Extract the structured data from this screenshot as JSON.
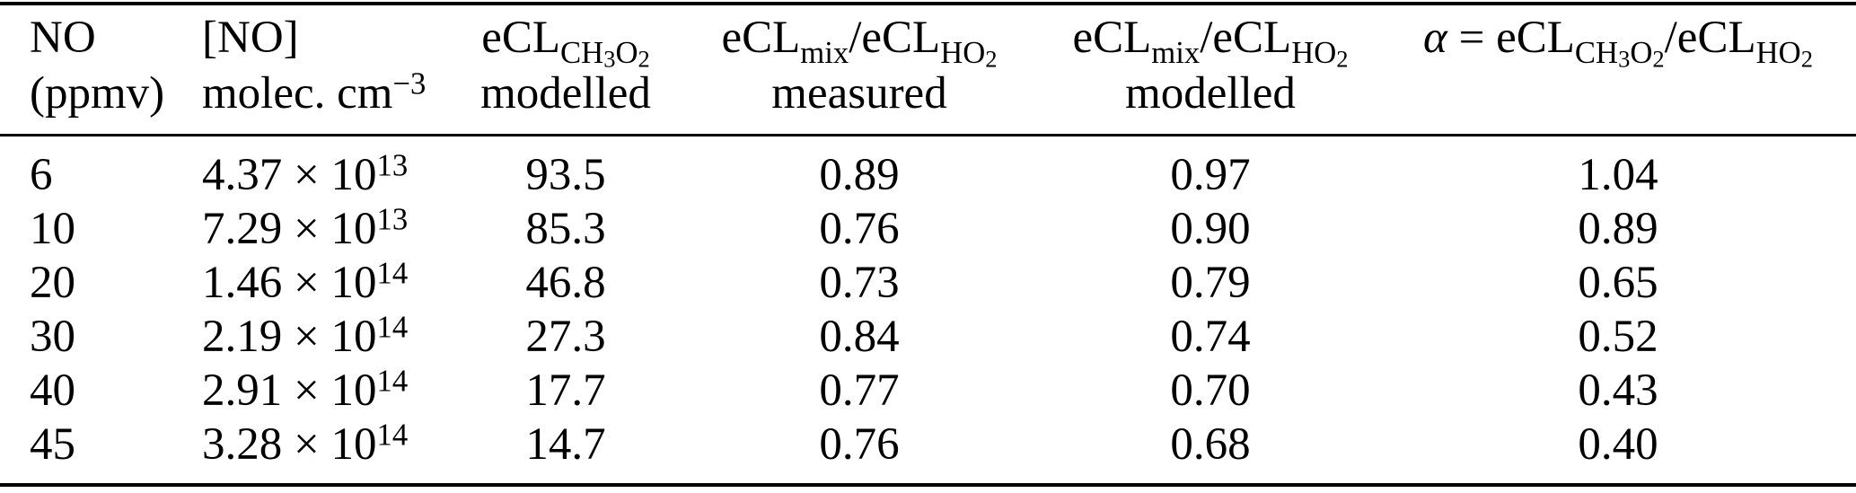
{
  "page": {
    "background": "#ffffff",
    "text_color": "#000000",
    "rule_color": "#000000"
  },
  "table": {
    "header": {
      "c1": {
        "l1": [
          [
            "n",
            "NO"
          ]
        ],
        "l2": [
          [
            "n",
            "(ppmv)"
          ]
        ]
      },
      "c2": {
        "l1": [
          [
            "n",
            "[NO]"
          ]
        ],
        "l2": [
          [
            "n",
            "molec. cm"
          ],
          [
            "p",
            "−3"
          ]
        ]
      },
      "c3": {
        "l1": [
          [
            "n",
            "eCL"
          ],
          [
            "s",
            "CH"
          ],
          [
            "ss",
            "3"
          ],
          [
            "s",
            "O"
          ],
          [
            "ss",
            "2"
          ]
        ],
        "l2": [
          [
            "n",
            "modelled"
          ]
        ]
      },
      "c4": {
        "l1": [
          [
            "n",
            "eCL"
          ],
          [
            "s",
            "mix"
          ],
          [
            "n",
            "/eCL"
          ],
          [
            "s",
            "HO"
          ],
          [
            "ss",
            "2"
          ]
        ],
        "l2": [
          [
            "n",
            "measured"
          ]
        ]
      },
      "c5": {
        "l1": [
          [
            "n",
            "eCL"
          ],
          [
            "s",
            "mix"
          ],
          [
            "n",
            "/eCL"
          ],
          [
            "s",
            "HO"
          ],
          [
            "ss",
            "2"
          ]
        ],
        "l2": [
          [
            "n",
            "modelled"
          ]
        ]
      },
      "c6": {
        "l1": [
          [
            "i",
            "α"
          ],
          [
            "n",
            " = eCL"
          ],
          [
            "s",
            "CH"
          ],
          [
            "ss",
            "3"
          ],
          [
            "s",
            "O"
          ],
          [
            "ss",
            "2"
          ],
          [
            "n",
            "/eCL"
          ],
          [
            "s",
            "HO"
          ],
          [
            "ss",
            "2"
          ]
        ],
        "l2": []
      }
    },
    "rows": [
      {
        "no": "6",
        "conc": [
          [
            "n",
            "4.37 × 10"
          ],
          [
            "p",
            "13"
          ]
        ],
        "ecl": "93.5",
        "meas": "0.89",
        "mod": "0.97",
        "alpha": "1.04"
      },
      {
        "no": "10",
        "conc": [
          [
            "n",
            "7.29 × 10"
          ],
          [
            "p",
            "13"
          ]
        ],
        "ecl": "85.3",
        "meas": "0.76",
        "mod": "0.90",
        "alpha": "0.89"
      },
      {
        "no": "20",
        "conc": [
          [
            "n",
            "1.46 × 10"
          ],
          [
            "p",
            "14"
          ]
        ],
        "ecl": "46.8",
        "meas": "0.73",
        "mod": "0.79",
        "alpha": "0.65"
      },
      {
        "no": "30",
        "conc": [
          [
            "n",
            "2.19 × 10"
          ],
          [
            "p",
            "14"
          ]
        ],
        "ecl": "27.3",
        "meas": "0.84",
        "mod": "0.74",
        "alpha": "0.52"
      },
      {
        "no": "40",
        "conc": [
          [
            "n",
            "2.91 × 10"
          ],
          [
            "p",
            "14"
          ]
        ],
        "ecl": "17.7",
        "meas": "0.77",
        "mod": "0.70",
        "alpha": "0.43"
      },
      {
        "no": "45",
        "conc": [
          [
            "n",
            "3.28 × 10"
          ],
          [
            "p",
            "14"
          ]
        ],
        "ecl": "14.7",
        "meas": "0.76",
        "mod": "0.68",
        "alpha": "0.40"
      }
    ]
  },
  "chart_data": {
    "type": "table",
    "columns": [
      "NO (ppmv)",
      "[NO] molec. cm^−3",
      "eCL_CH3O2 modelled",
      "eCL_mix/eCL_HO2 measured",
      "eCL_mix/eCL_HO2 modelled",
      "α = eCL_CH3O2/eCL_HO2"
    ],
    "rows": [
      [
        6,
        "4.37 × 10^13",
        93.5,
        0.89,
        0.97,
        1.04
      ],
      [
        10,
        "7.29 × 10^13",
        85.3,
        0.76,
        0.9,
        0.89
      ],
      [
        20,
        "1.46 × 10^14",
        46.8,
        0.73,
        0.79,
        0.65
      ],
      [
        30,
        "2.19 × 10^14",
        27.3,
        0.84,
        0.74,
        0.52
      ],
      [
        40,
        "2.91 × 10^14",
        17.7,
        0.77,
        0.7,
        0.43
      ],
      [
        45,
        "3.28 × 10^14",
        14.7,
        0.76,
        0.68,
        0.4
      ]
    ]
  }
}
